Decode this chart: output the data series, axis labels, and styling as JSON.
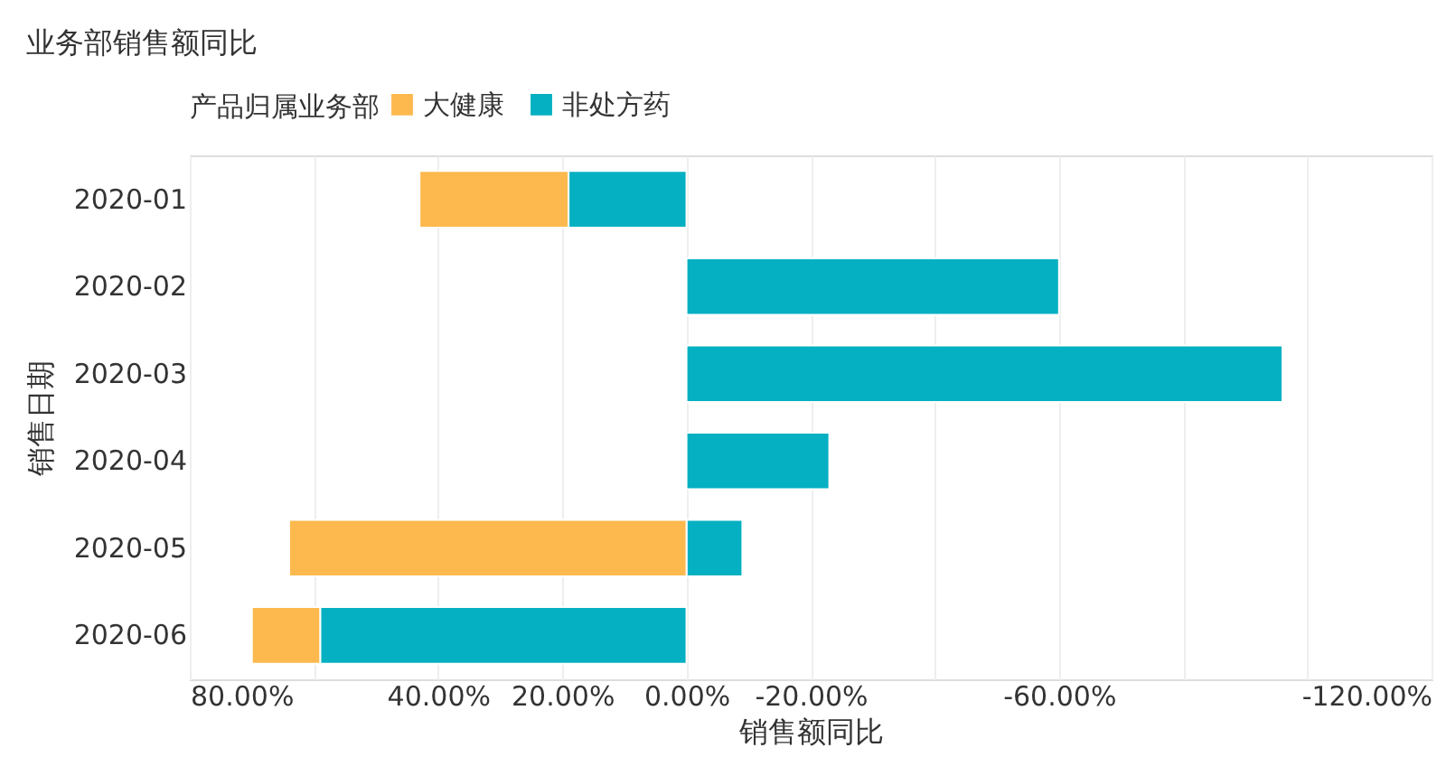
{
  "chart_data": {
    "type": "bar",
    "orientation": "horizontal",
    "stacked": true,
    "title": "业务部销售额同比",
    "xlabel": "销售额同比",
    "ylabel": "销售日期",
    "legend_title": "产品归属业务部",
    "categories": [
      "2020-01",
      "2020-02",
      "2020-03",
      "2020-04",
      "2020-05",
      "2020-06"
    ],
    "series": [
      {
        "name": "非处方药",
        "color": "#04b0c2",
        "values": [
          19,
          -60,
          -96,
          -23,
          -9,
          59
        ]
      },
      {
        "name": "大健康",
        "color": "#fdb94e",
        "values": [
          24,
          null,
          null,
          null,
          64,
          11
        ]
      }
    ],
    "xlim": [
      80,
      -120
    ],
    "xticks": [
      {
        "value": 80,
        "label": "80.00%"
      },
      {
        "value": 60,
        "label": null
      },
      {
        "value": 40,
        "label": "40.00%"
      },
      {
        "value": 20,
        "label": "20.00%"
      },
      {
        "value": 0,
        "label": "0.00%"
      },
      {
        "value": -20,
        "label": "-20.00%"
      },
      {
        "value": -40,
        "label": null
      },
      {
        "value": -60,
        "label": "-60.00%"
      },
      {
        "value": -80,
        "label": null
      },
      {
        "value": -100,
        "label": null
      },
      {
        "value": -120,
        "label": "-120.00%"
      }
    ],
    "grid": "x",
    "legend": "top left"
  }
}
